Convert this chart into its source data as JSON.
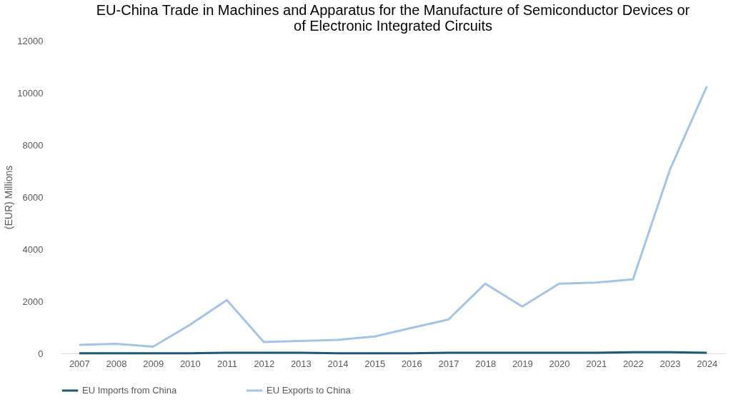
{
  "chart_data": {
    "type": "line",
    "title": [
      "EU-China Trade in Machines and Apparatus for the Manufacture of Semiconductor Devices or",
      "of Electronic Integrated Circuits"
    ],
    "ylabel": "(EUR) Millions",
    "categories": [
      "2007",
      "2008",
      "2009",
      "2010",
      "2011",
      "2012",
      "2013",
      "2014",
      "2015",
      "2016",
      "2017",
      "2018",
      "2019",
      "2020",
      "2021",
      "2022",
      "2023",
      "2024"
    ],
    "series": [
      {
        "name": "EU Imports from China",
        "color": "#1a5b78",
        "values": [
          10,
          10,
          10,
          10,
          30,
          30,
          30,
          10,
          10,
          10,
          30,
          30,
          30,
          30,
          30,
          50,
          50,
          30
        ]
      },
      {
        "name": "EU Exports to China",
        "color": "#a3c4e4",
        "values": [
          330,
          370,
          260,
          1100,
          2050,
          440,
          480,
          520,
          650,
          980,
          1300,
          2680,
          1800,
          2680,
          2720,
          2840,
          7050,
          10250
        ]
      }
    ],
    "ylim": [
      0,
      12000
    ],
    "yticks": [
      0,
      2000,
      4000,
      6000,
      8000,
      10000,
      12000
    ],
    "grid": false,
    "legend": "bottom",
    "marker": "none",
    "line_style": "solid"
  }
}
